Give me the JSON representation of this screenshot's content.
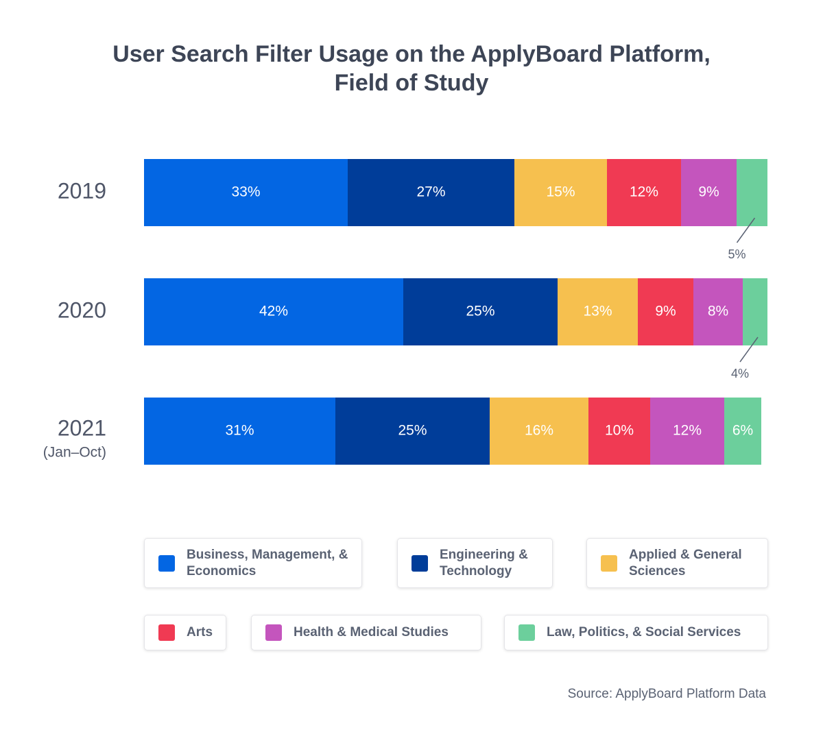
{
  "chart_data": {
    "type": "stacked-bar-horizontal",
    "title": "User Search Filter Usage on the ApplyBoard Platform,\nField of Study",
    "categories": [
      "2019",
      "2020",
      "2021"
    ],
    "category_sublabels": [
      null,
      null,
      "(Jan–Oct)"
    ],
    "xlim": [
      0,
      101
    ],
    "series": [
      {
        "name": "Business, Management, & Economics",
        "color": "#0366e3",
        "values": [
          33,
          42,
          31
        ],
        "value_labels": [
          "33%",
          "42%",
          "31%"
        ]
      },
      {
        "name": "Engineering & Technology",
        "color": "#003d99",
        "values": [
          27,
          25,
          25
        ],
        "value_labels": [
          "27%",
          "25%",
          "25%"
        ]
      },
      {
        "name": "Applied & General Sciences",
        "color": "#f6c04f",
        "values": [
          15,
          13,
          16
        ],
        "value_labels": [
          "15%",
          "13%",
          "16%"
        ]
      },
      {
        "name": "Arts",
        "color": "#f03a53",
        "values": [
          12,
          9,
          10
        ],
        "value_labels": [
          "12%",
          "9%",
          "10%"
        ]
      },
      {
        "name": "Health & Medical Studies",
        "color": "#c455bd",
        "values": [
          9,
          8,
          12
        ],
        "value_labels": [
          "9%",
          "8%",
          "12%"
        ]
      },
      {
        "name": "Law, Politics, & Social Services",
        "color": "#6ccf9c",
        "values": [
          5,
          4,
          6
        ],
        "value_labels": [
          "5%",
          "4%",
          "6%"
        ]
      }
    ],
    "source": "Source: ApplyBoard Platform Data"
  }
}
